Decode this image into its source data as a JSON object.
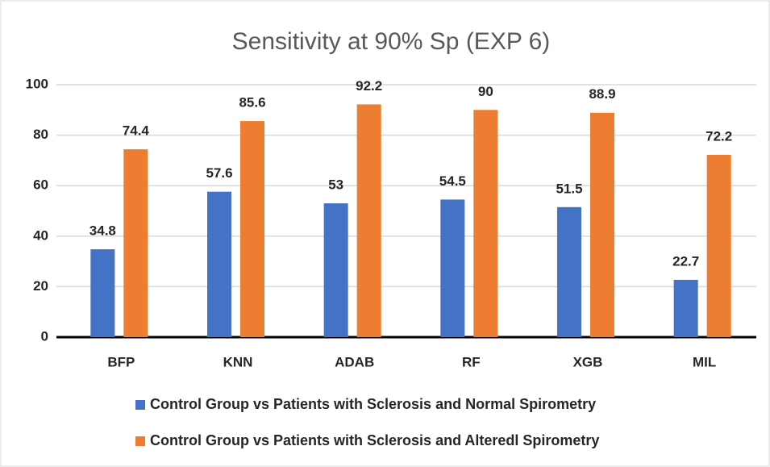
{
  "chart_data": {
    "type": "bar",
    "title": "Sensitivity at 90% Sp (EXP 6)",
    "categories": [
      "BFP",
      "KNN",
      "ADAB",
      "RF",
      "XGB",
      "MIL"
    ],
    "series": [
      {
        "name": "Control Group vs Patients with Sclerosis and Normal Spirometry",
        "color": "#4472c4",
        "values": [
          34.8,
          57.6,
          53,
          54.5,
          51.5,
          22.7
        ]
      },
      {
        "name": "Control Group vs Patients with Sclerosis and Alteredl Spirometry",
        "color": "#ed7d31",
        "values": [
          74.4,
          85.6,
          92.2,
          90,
          88.9,
          72.2
        ]
      }
    ],
    "ylim": [
      0,
      100
    ],
    "yticks": [
      0,
      20,
      40,
      60,
      80,
      100
    ],
    "grid": true,
    "legend": "bottom"
  }
}
